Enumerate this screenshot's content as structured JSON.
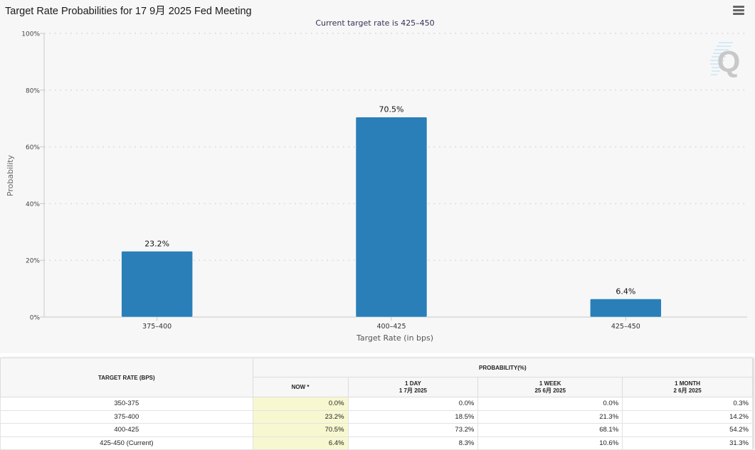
{
  "header": {
    "title": "Target Rate Probabilities for 17 9月 2025 Fed Meeting",
    "menu_icon": "hamburger-menu-icon"
  },
  "watermark": {
    "icon": "quikstrike-q-logo-icon",
    "letter": "Q"
  },
  "colors": {
    "bar": "#2a7fb8",
    "now_column_bg": "#f8f8d0",
    "chart_bg": "#f7f7f7"
  },
  "chart_data": {
    "type": "bar",
    "title": "Target Rate Probabilities for 17 9月 2025 Fed Meeting",
    "subtitle": "Current target rate is 425–450",
    "xlabel": "Target Rate (in bps)",
    "ylabel": "Probability",
    "categories": [
      "375–400",
      "400–425",
      "425–450"
    ],
    "values": [
      23.2,
      70.5,
      6.4
    ],
    "data_labels": [
      "23.2%",
      "70.5%",
      "6.4%"
    ],
    "ylim": [
      0,
      100
    ],
    "yticks": [
      0,
      20,
      40,
      60,
      80,
      100
    ],
    "ytick_labels": [
      "0%",
      "20%",
      "40%",
      "60%",
      "80%",
      "100%"
    ],
    "grid": true,
    "legend": "none"
  },
  "table": {
    "rate_header": "TARGET RATE (BPS)",
    "prob_header": "PROBABILITY(%)",
    "columns": [
      {
        "label": "NOW *",
        "date": ""
      },
      {
        "label": "1 DAY",
        "date": "1 7月 2025"
      },
      {
        "label": "1 WEEK",
        "date": "25 6月 2025"
      },
      {
        "label": "1 MONTH",
        "date": "2 6月 2025"
      }
    ],
    "rows": [
      {
        "rate": "350-375",
        "values": [
          "0.0%",
          "0.0%",
          "0.0%",
          "0.3%"
        ]
      },
      {
        "rate": "375-400",
        "values": [
          "23.2%",
          "18.5%",
          "21.3%",
          "14.2%"
        ]
      },
      {
        "rate": "400-425",
        "values": [
          "70.5%",
          "73.2%",
          "68.1%",
          "54.2%"
        ]
      },
      {
        "rate": "425-450 (Current)",
        "values": [
          "6.4%",
          "8.3%",
          "10.6%",
          "31.3%"
        ]
      }
    ]
  }
}
